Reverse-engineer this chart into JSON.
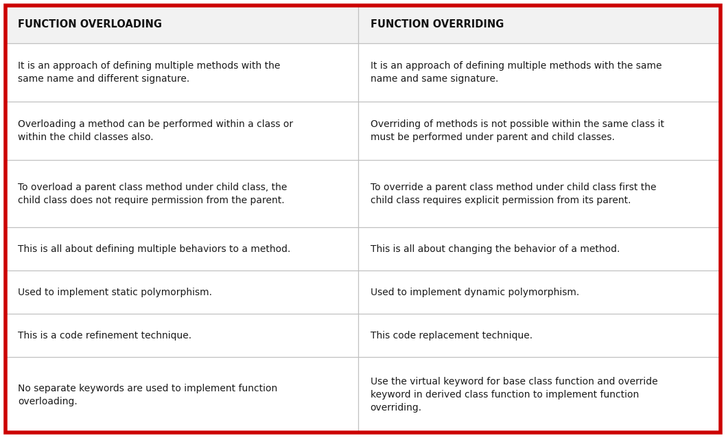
{
  "col1_header": "FUNCTION OVERLOADING",
  "col2_header": "FUNCTION OVERRIDING",
  "rows": [
    [
      "It is an approach of defining multiple methods with the\nsame name and different signature.",
      "It is an approach of defining multiple methods with the same\nname and same signature."
    ],
    [
      "Overloading a method can be performed within a class or\nwithin the child classes also.",
      "Overriding of methods is not possible within the same class it\nmust be performed under parent and child classes."
    ],
    [
      "To overload a parent class method under child class, the\nchild class does not require permission from the parent.",
      "To override a parent class method under child class first the\nchild class requires explicit permission from its parent."
    ],
    [
      "This is all about defining multiple behaviors to a method.",
      "This is all about changing the behavior of a method."
    ],
    [
      "Used to implement static polymorphism.",
      "Used to implement dynamic polymorphism."
    ],
    [
      "This is a code refinement technique.",
      "This code replacement technique."
    ],
    [
      "No separate keywords are used to implement function\noverloading.",
      "Use the virtual keyword for base class function and override\nkeyword in derived class function to implement function\noverriding."
    ]
  ],
  "border_color": "#cc0000",
  "header_bg": "#f2f2f2",
  "row_bg": "#ffffff",
  "grid_color": "#c0c0c0",
  "header_text_color": "#111111",
  "body_text_color": "#1a1a1a",
  "header_fontsize": 10.5,
  "body_fontsize": 10.0,
  "border_width": 4.0,
  "fig_width": 10.58,
  "fig_height": 6.38,
  "col_split": 0.493
}
